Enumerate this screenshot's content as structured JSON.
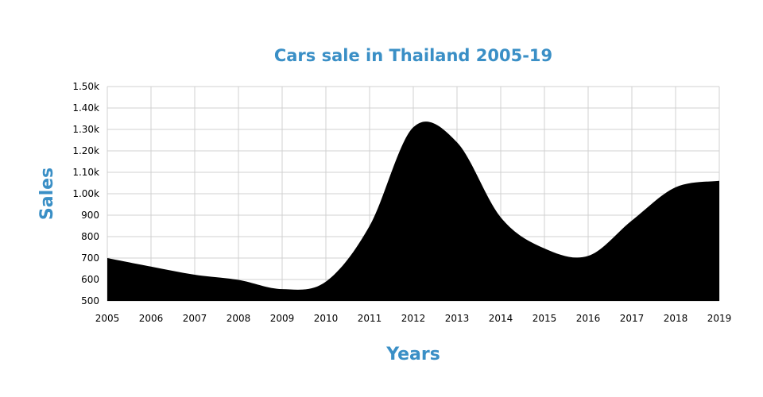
{
  "chart_data": {
    "type": "area",
    "title": "Cars sale in Thailand 2005-19",
    "xlabel": "Years",
    "ylabel": "Sales",
    "x": [
      "2005",
      "2006",
      "2007",
      "2008",
      "2009",
      "2010",
      "2011",
      "2012",
      "2013",
      "2014",
      "2015",
      "2016",
      "2017",
      "2018",
      "2019"
    ],
    "values": [
      700,
      660,
      622,
      598,
      555,
      590,
      850,
      1310,
      1240,
      890,
      745,
      710,
      875,
      1030,
      1060
    ],
    "ylim": [
      500,
      1500
    ],
    "yticks": [
      "500",
      "600",
      "700",
      "800",
      "900",
      "1.00k",
      "1.10k",
      "1.20k",
      "1.30k",
      "1.40k",
      "1.50k"
    ],
    "grid": true,
    "fill_color": "#000000",
    "title_color": "#3a8fc6"
  }
}
